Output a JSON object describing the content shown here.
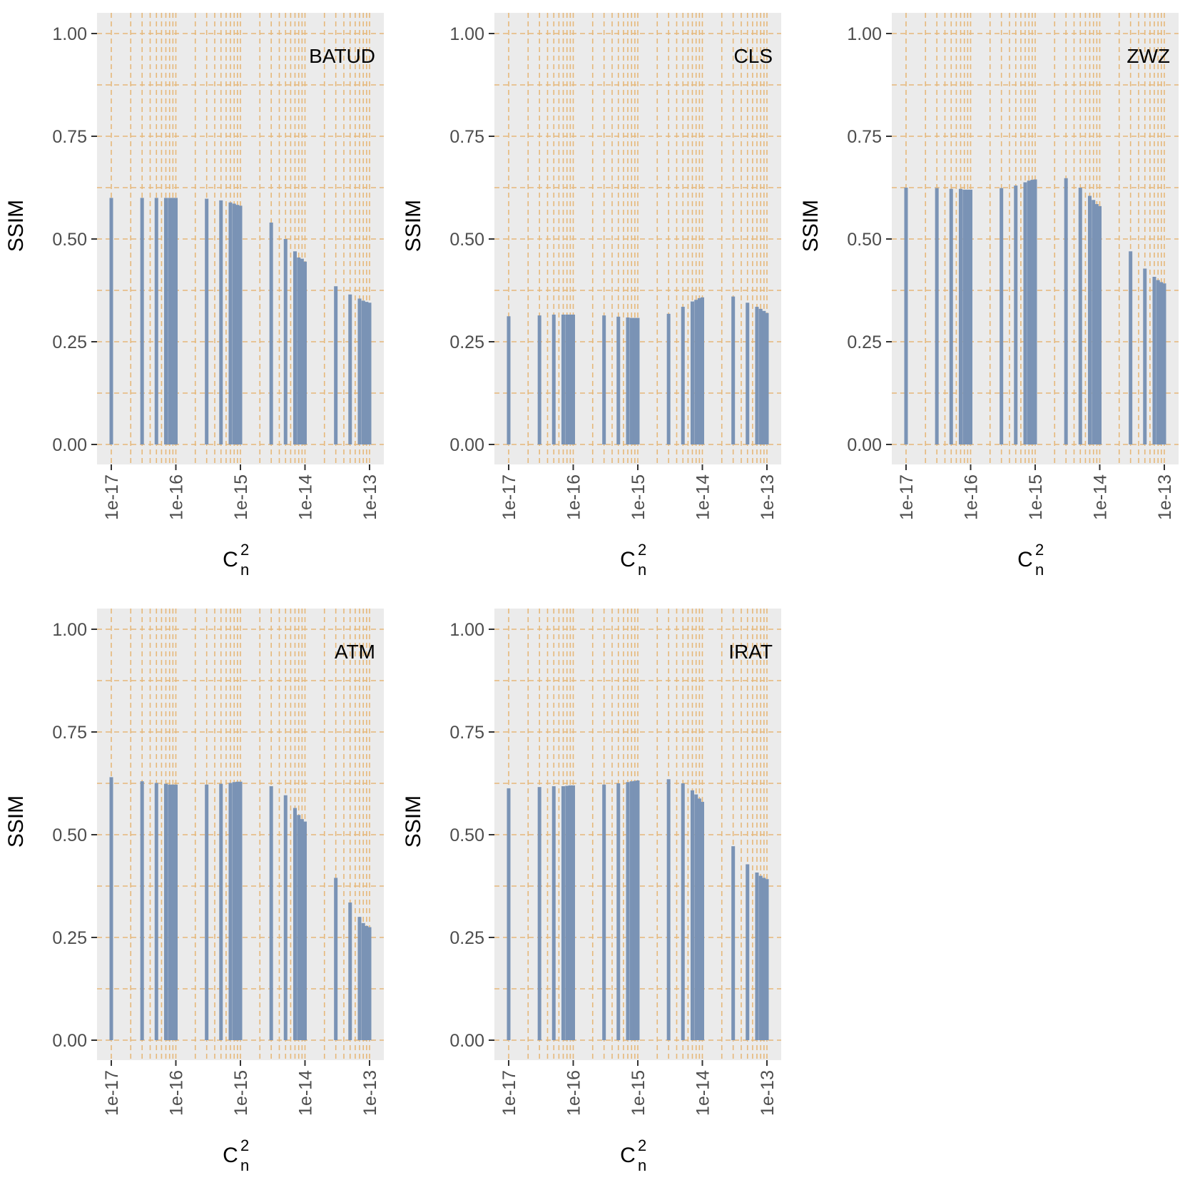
{
  "chart_data": [
    {
      "type": "bar",
      "label": "BATUD",
      "ylabel": "SSIM",
      "xlabel": "C",
      "xlabel_sub": "n",
      "xlabel_sup": "2",
      "xscale": "log10",
      "xlim": [
        1e-17,
        1e-13
      ],
      "ylim": [
        0,
        1
      ],
      "yticks": [
        "0.00",
        "0.25",
        "0.50",
        "0.75",
        "1.00"
      ],
      "xticks": [
        "1e-17",
        "1e-16",
        "1e-15",
        "1e-14",
        "1e-13"
      ],
      "x": [
        1e-17,
        3e-17,
        5e-17,
        7e-17,
        8e-17,
        9e-17,
        1e-16,
        3e-16,
        5e-16,
        7e-16,
        8e-16,
        9e-16,
        1e-15,
        3e-15,
        5e-15,
        7e-15,
        8e-15,
        9e-15,
        1e-14,
        3e-14,
        5e-14,
        7e-14,
        8e-14,
        9e-14,
        1e-13
      ],
      "values": [
        0.6,
        0.6,
        0.6,
        0.6,
        0.6,
        0.6,
        0.6,
        0.598,
        0.594,
        0.589,
        0.586,
        0.583,
        0.581,
        0.54,
        0.5,
        0.47,
        0.455,
        0.452,
        0.445,
        0.385,
        0.365,
        0.355,
        0.35,
        0.347,
        0.345
      ]
    },
    {
      "type": "bar",
      "label": "CLS",
      "ylabel": "SSIM",
      "xlabel": "C",
      "xlabel_sub": "n",
      "xlabel_sup": "2",
      "xscale": "log10",
      "xlim": [
        1e-17,
        1e-13
      ],
      "ylim": [
        0,
        1
      ],
      "yticks": [
        "0.00",
        "0.25",
        "0.50",
        "0.75",
        "1.00"
      ],
      "xticks": [
        "1e-17",
        "1e-16",
        "1e-15",
        "1e-14",
        "1e-13"
      ],
      "x": [
        1e-17,
        3e-17,
        5e-17,
        7e-17,
        8e-17,
        9e-17,
        1e-16,
        3e-16,
        5e-16,
        7e-16,
        8e-16,
        9e-16,
        1e-15,
        3e-15,
        5e-15,
        7e-15,
        8e-15,
        9e-15,
        1e-14,
        3e-14,
        5e-14,
        7e-14,
        8e-14,
        9e-14,
        1e-13
      ],
      "values": [
        0.312,
        0.314,
        0.316,
        0.316,
        0.316,
        0.316,
        0.316,
        0.314,
        0.311,
        0.309,
        0.308,
        0.308,
        0.308,
        0.318,
        0.335,
        0.348,
        0.352,
        0.356,
        0.358,
        0.36,
        0.345,
        0.335,
        0.33,
        0.325,
        0.32
      ]
    },
    {
      "type": "bar",
      "label": "ZWZ",
      "ylabel": "SSIM",
      "xlabel": "C",
      "xlabel_sub": "n",
      "xlabel_sup": "2",
      "xscale": "log10",
      "xlim": [
        1e-17,
        1e-13
      ],
      "ylim": [
        0,
        1
      ],
      "yticks": [
        "0.00",
        "0.25",
        "0.50",
        "0.75",
        "1.00"
      ],
      "xticks": [
        "1e-17",
        "1e-16",
        "1e-15",
        "1e-14",
        "1e-13"
      ],
      "x": [
        1e-17,
        3e-17,
        5e-17,
        7e-17,
        8e-17,
        9e-17,
        1e-16,
        3e-16,
        5e-16,
        7e-16,
        8e-16,
        9e-16,
        1e-15,
        3e-15,
        5e-15,
        7e-15,
        8e-15,
        9e-15,
        1e-14,
        3e-14,
        5e-14,
        7e-14,
        8e-14,
        9e-14,
        1e-13
      ],
      "values": [
        0.625,
        0.624,
        0.622,
        0.622,
        0.62,
        0.62,
        0.62,
        0.624,
        0.63,
        0.638,
        0.642,
        0.644,
        0.645,
        0.648,
        0.625,
        0.605,
        0.595,
        0.585,
        0.58,
        0.47,
        0.428,
        0.408,
        0.4,
        0.395,
        0.392
      ]
    },
    {
      "type": "bar",
      "label": "ATM",
      "ylabel": "SSIM",
      "xlabel": "C",
      "xlabel_sub": "n",
      "xlabel_sup": "2",
      "xscale": "log10",
      "xlim": [
        1e-17,
        1e-13
      ],
      "ylim": [
        0,
        1
      ],
      "yticks": [
        "0.00",
        "0.25",
        "0.50",
        "0.75",
        "1.00"
      ],
      "xticks": [
        "1e-17",
        "1e-16",
        "1e-15",
        "1e-14",
        "1e-13"
      ],
      "x": [
        1e-17,
        3e-17,
        5e-17,
        7e-17,
        8e-17,
        9e-17,
        1e-16,
        3e-16,
        5e-16,
        7e-16,
        8e-16,
        9e-16,
        1e-15,
        3e-15,
        5e-15,
        7e-15,
        8e-15,
        9e-15,
        1e-14,
        3e-14,
        5e-14,
        7e-14,
        8e-14,
        9e-14,
        1e-13
      ],
      "values": [
        0.64,
        0.63,
        0.626,
        0.624,
        0.622,
        0.622,
        0.622,
        0.622,
        0.624,
        0.626,
        0.628,
        0.629,
        0.629,
        0.618,
        0.596,
        0.565,
        0.548,
        0.538,
        0.532,
        0.395,
        0.335,
        0.3,
        0.285,
        0.278,
        0.275
      ]
    },
    {
      "type": "bar",
      "label": "IRAT",
      "ylabel": "SSIM",
      "xlabel": "C",
      "xlabel_sub": "n",
      "xlabel_sup": "2",
      "xscale": "log10",
      "xlim": [
        1e-17,
        1e-13
      ],
      "ylim": [
        0,
        1
      ],
      "yticks": [
        "0.00",
        "0.25",
        "0.50",
        "0.75",
        "1.00"
      ],
      "xticks": [
        "1e-17",
        "1e-16",
        "1e-15",
        "1e-14",
        "1e-13"
      ],
      "x": [
        1e-17,
        3e-17,
        5e-17,
        7e-17,
        8e-17,
        9e-17,
        1e-16,
        3e-16,
        5e-16,
        7e-16,
        8e-16,
        9e-16,
        1e-15,
        3e-15,
        5e-15,
        7e-15,
        8e-15,
        9e-15,
        1e-14,
        3e-14,
        5e-14,
        7e-14,
        8e-14,
        9e-14,
        1e-13
      ],
      "values": [
        0.613,
        0.616,
        0.618,
        0.618,
        0.619,
        0.62,
        0.62,
        0.622,
        0.625,
        0.628,
        0.63,
        0.631,
        0.632,
        0.635,
        0.625,
        0.608,
        0.598,
        0.588,
        0.58,
        0.472,
        0.428,
        0.408,
        0.4,
        0.395,
        0.392
      ]
    }
  ],
  "colors": {
    "panel_background": "#ebebeb",
    "grid": "#e6b87a",
    "bar": "#7a93b5",
    "tick_text": "#4d4d4d",
    "tick_mark": "#333333"
  }
}
